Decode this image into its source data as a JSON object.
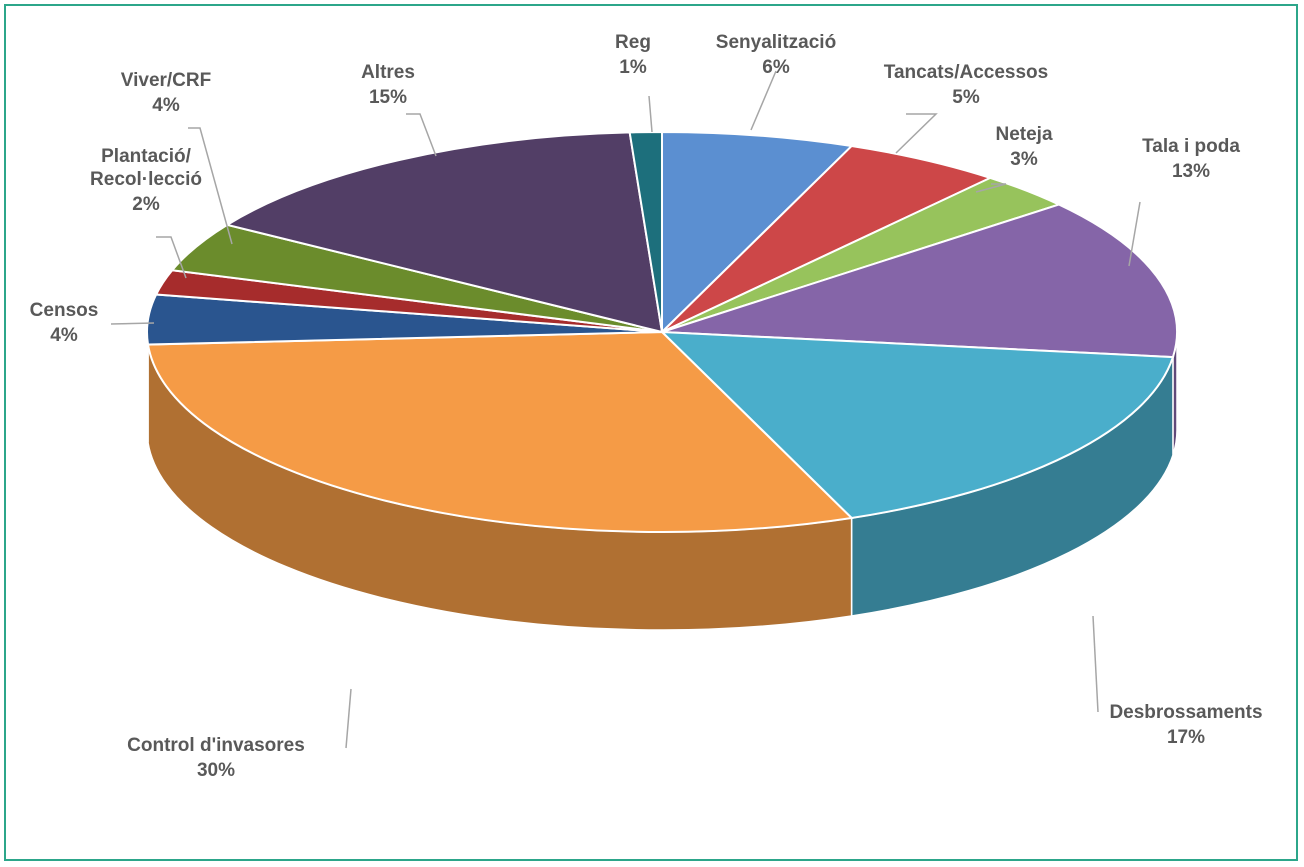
{
  "chart_data": {
    "type": "pie",
    "title": "",
    "slices": [
      {
        "label": "Senyalització",
        "value": 6,
        "value_label": "6%",
        "color": "#5b8fd1"
      },
      {
        "label": "Tancats/Accessos",
        "value": 5,
        "value_label": "5%",
        "color": "#cd4748"
      },
      {
        "label": "Neteja",
        "value": 3,
        "value_label": "3%",
        "color": "#97c35c"
      },
      {
        "label": "Tala i poda",
        "value": 13,
        "value_label": "13%",
        "color": "#8565a8"
      },
      {
        "label": "Desbrossaments",
        "value": 17,
        "value_label": "17%",
        "color": "#4aaecb"
      },
      {
        "label": "Control d'invasores",
        "value": 30,
        "value_label": "30%",
        "color": "#f59b46"
      },
      {
        "label": "Censos",
        "value": 4,
        "value_label": "4%",
        "color": "#2a558f"
      },
      {
        "label": "Plantació/\nRecol·lecció",
        "value": 2,
        "value_label": "2%",
        "color": "#a62c2c"
      },
      {
        "label": "Viver/CRF",
        "value": 4,
        "value_label": "4%",
        "color": "#6b8c2c"
      },
      {
        "label": "Altres",
        "value": 15,
        "value_label": "15%",
        "color": "#523e66"
      },
      {
        "label": "Reg",
        "value": 1,
        "value_label": "1%",
        "color": "#1d6f7c"
      }
    ],
    "style": "3d-pie",
    "legend": "none",
    "data_labels": "outside with leader lines"
  },
  "colors": {
    "border": "#2ca68a",
    "label_text": "#595959",
    "leader_line": "#a6a6a6"
  }
}
